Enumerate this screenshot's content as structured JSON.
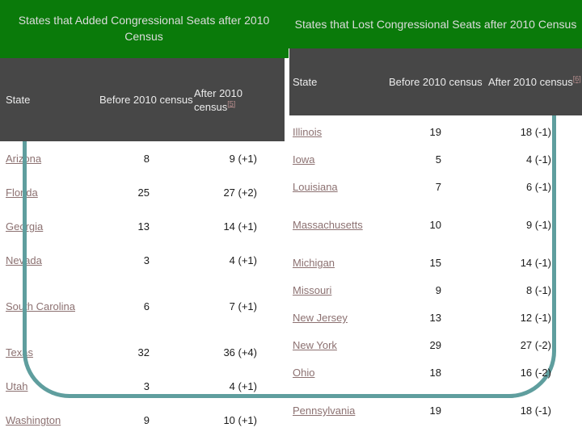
{
  "left_table": {
    "title": "States that Added Congressional Seats after 2010 Census",
    "columns": {
      "state": "State",
      "before": "Before 2010 census",
      "after": "After 2010 census",
      "after_ref": "[5]"
    },
    "rows": [
      {
        "state": "Arizona",
        "before": "8",
        "after": "9 (+1)"
      },
      {
        "state": "Florida",
        "before": "25",
        "after": "27 (+2)"
      },
      {
        "state": "Georgia",
        "before": "13",
        "after": "14 (+1)"
      },
      {
        "state": "Nevada",
        "before": "3",
        "after": "4 (+1)"
      },
      {
        "state": "South Carolina",
        "before": "6",
        "after": "7 (+1)"
      },
      {
        "state": "Texas",
        "before": "32",
        "after": "36 (+4)"
      },
      {
        "state": "Utah",
        "before": "3",
        "after": "4 (+1)"
      },
      {
        "state": "Washington",
        "before": "9",
        "after": "10 (+1)"
      }
    ]
  },
  "right_table": {
    "title": "States that Lost Congressional Seats after 2010 Census",
    "columns": {
      "state": "State",
      "before": "Before 2010 census",
      "after": "After 2010 census",
      "after_ref": "[6]"
    },
    "rows": [
      {
        "state": "Illinois",
        "before": "19",
        "after": "18 (-1)"
      },
      {
        "state": "Iowa",
        "before": "5",
        "after": "4 (-1)"
      },
      {
        "state": "Louisiana",
        "before": "7",
        "after": "6 (-1)"
      },
      {
        "state": "Massachusetts",
        "before": "10",
        "after": "9 (-1)"
      },
      {
        "state": "Michigan",
        "before": "15",
        "after": "14 (-1)"
      },
      {
        "state": "Missouri",
        "before": "9",
        "after": "8 (-1)"
      },
      {
        "state": "New Jersey",
        "before": "13",
        "after": "12 (-1)"
      },
      {
        "state": "New York",
        "before": "29",
        "after": "27 (-2)"
      },
      {
        "state": "Ohio",
        "before": "18",
        "after": "16 (-2)"
      },
      {
        "state": "Pennsylvania",
        "before": "19",
        "after": "18 (-1)"
      }
    ]
  },
  "colors": {
    "title_band_green": "#0a7a0a",
    "header_gray": "#474747",
    "frame_teal": "#5f9e9e",
    "state_link": "#8c7171",
    "citation_link": "#b98f8f"
  }
}
